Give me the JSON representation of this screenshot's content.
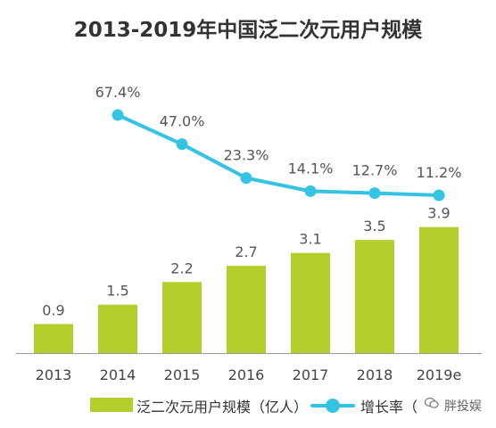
{
  "chart_data": {
    "type": "bar+line",
    "title": "2013-2019年中国泛二次元用户规模",
    "categories": [
      "2013",
      "2014",
      "2015",
      "2016",
      "2017",
      "2018",
      "2019e"
    ],
    "series": [
      {
        "name": "泛二次元用户规模（亿人）",
        "type": "bar",
        "values": [
          0.9,
          1.5,
          2.2,
          2.7,
          3.1,
          3.5,
          3.9
        ],
        "labels": [
          "0.9",
          "1.5",
          "2.2",
          "2.7",
          "3.1",
          "3.5",
          "3.9"
        ],
        "color": "#b4cf2b"
      },
      {
        "name": "增长率（",
        "type": "line",
        "values": [
          null,
          67.4,
          47.0,
          23.3,
          14.1,
          12.7,
          11.2
        ],
        "labels": [
          "",
          "67.4%",
          "47.0%",
          "23.3%",
          "14.1%",
          "12.7%",
          "11.2%"
        ],
        "color": "#35c3e4"
      }
    ],
    "legend_position": "bottom",
    "grid": false
  },
  "watermark": {
    "text": "胖投娱",
    "icon": "wechat-icon"
  }
}
